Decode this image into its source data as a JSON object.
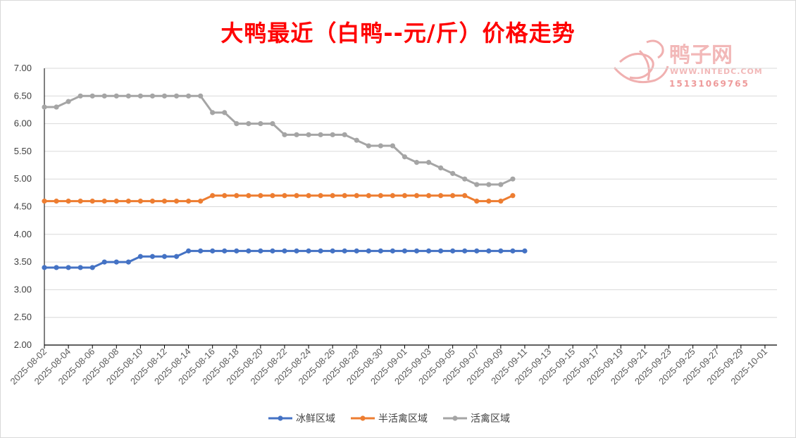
{
  "chart_data": {
    "type": "line",
    "title": "大鸭最近（白鸭--元/斤）价格走势",
    "ylim": [
      2.0,
      7.0
    ],
    "y_ticks": [
      "7.00",
      "6.50",
      "6.00",
      "5.50",
      "5.00",
      "4.50",
      "4.00",
      "3.50",
      "3.00",
      "2.50",
      "2.00"
    ],
    "x_tick_labels": [
      "2025-08-02",
      "2025-08-04",
      "2025-08-06",
      "2025-08-08",
      "2025-08-10",
      "2025-08-12",
      "2025-08-14",
      "2025-08-16",
      "2025-08-18",
      "2025-08-20",
      "2025-08-22",
      "2025-08-24",
      "2025-08-26",
      "2025-08-28",
      "2025-08-30",
      "2025-09-01",
      "2025-09-03",
      "2025-09-05",
      "2025-09-07",
      "2025-09-09",
      "2025-09-11",
      "2025-09-13",
      "2025-09-15",
      "2025-09-17",
      "2025-09-19",
      "2025-09-21",
      "2025-09-23",
      "2025-09-25",
      "2025-09-27",
      "2025-09-29",
      "2025-10-01"
    ],
    "x_range": [
      "2025-08-02",
      "2025-10-02"
    ],
    "grid": true,
    "legend_position": "bottom",
    "series": [
      {
        "name": "冰鲜区域",
        "color": "#4472c4",
        "start_date": "2025-08-02",
        "values": [
          3.4,
          3.4,
          3.4,
          3.4,
          3.4,
          3.5,
          3.5,
          3.5,
          3.6,
          3.6,
          3.6,
          3.6,
          3.7,
          3.7,
          3.7,
          3.7,
          3.7,
          3.7,
          3.7,
          3.7,
          3.7,
          3.7,
          3.7,
          3.7,
          3.7,
          3.7,
          3.7,
          3.7,
          3.7,
          3.7,
          3.7,
          3.7,
          3.7,
          3.7,
          3.7,
          3.7,
          3.7,
          3.7,
          3.7,
          3.7,
          3.7
        ]
      },
      {
        "name": "半活禽区域",
        "color": "#ed7d31",
        "start_date": "2025-08-02",
        "values": [
          4.6,
          4.6,
          4.6,
          4.6,
          4.6,
          4.6,
          4.6,
          4.6,
          4.6,
          4.6,
          4.6,
          4.6,
          4.6,
          4.6,
          4.7,
          4.7,
          4.7,
          4.7,
          4.7,
          4.7,
          4.7,
          4.7,
          4.7,
          4.7,
          4.7,
          4.7,
          4.7,
          4.7,
          4.7,
          4.7,
          4.7,
          4.7,
          4.7,
          4.7,
          4.7,
          4.7,
          4.6,
          4.6,
          4.6,
          4.7
        ]
      },
      {
        "name": "活禽区域",
        "color": "#a5a5a5",
        "start_date": "2025-08-02",
        "values": [
          6.3,
          6.3,
          6.4,
          6.5,
          6.5,
          6.5,
          6.5,
          6.5,
          6.5,
          6.5,
          6.5,
          6.5,
          6.5,
          6.5,
          6.2,
          6.2,
          6.0,
          6.0,
          6.0,
          6.0,
          5.8,
          5.8,
          5.8,
          5.8,
          5.8,
          5.8,
          5.7,
          5.6,
          5.6,
          5.6,
          5.4,
          5.3,
          5.3,
          5.2,
          5.1,
          5.0,
          4.9,
          4.9,
          4.9,
          5.0
        ]
      }
    ]
  },
  "watermark": {
    "brand": "鸭子网",
    "url": "WWW.INTEDC.COM",
    "phone": "15131069765"
  }
}
